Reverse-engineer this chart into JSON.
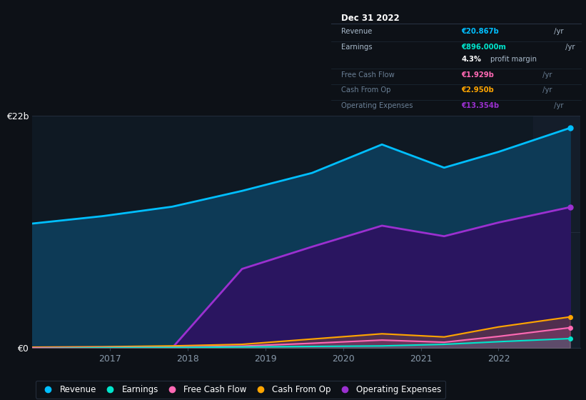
{
  "background_color": "#0d1117",
  "plot_bg_color": "#0f1923",
  "years": [
    2016.0,
    2016.9,
    2017.8,
    2018.7,
    2019.6,
    2020.5,
    2021.3,
    2022.0,
    2022.92
  ],
  "revenue": [
    11.8,
    12.5,
    13.4,
    14.9,
    16.6,
    19.3,
    17.1,
    18.6,
    20.867
  ],
  "earnings": [
    -0.05,
    0.02,
    0.05,
    0.1,
    0.15,
    0.2,
    0.35,
    0.6,
    0.896
  ],
  "free_cash_flow": [
    0.02,
    0.05,
    0.08,
    0.18,
    0.45,
    0.75,
    0.55,
    1.1,
    1.929
  ],
  "cash_from_op": [
    0.08,
    0.12,
    0.2,
    0.35,
    0.85,
    1.35,
    1.05,
    2.0,
    2.95
  ],
  "operating_expenses": [
    0,
    0,
    0,
    7.5,
    9.6,
    11.6,
    10.6,
    11.9,
    13.354
  ],
  "revenue_color": "#00bfff",
  "earnings_color": "#00e5cc",
  "free_cash_flow_color": "#ff69b4",
  "cash_from_op_color": "#ffa500",
  "operating_expenses_color": "#9b30d0",
  "revenue_fill": "#0d3a56",
  "operating_expenses_fill": "#2a1560",
  "ylim": [
    0,
    22
  ],
  "yticks": [
    0,
    11,
    22
  ],
  "ytick_labels": [
    "€0",
    "",
    "€22b"
  ],
  "xlabel_ticks": [
    2017,
    2018,
    2019,
    2020,
    2021,
    2022
  ],
  "info_box_title": "Dec 31 2022",
  "info_rows": [
    {
      "label": "Revenue",
      "value": "€20.867b",
      "unit": " /yr",
      "value_color": "#00bfff",
      "dim": false
    },
    {
      "label": "Earnings",
      "value": "€896.000m",
      "unit": " /yr",
      "value_color": "#00e5cc",
      "dim": false
    },
    {
      "label": "",
      "value": "4.3%",
      "unit": " profit margin",
      "value_color": "#ffffff",
      "dim": false,
      "suffix_dim": true
    },
    {
      "label": "Free Cash Flow",
      "value": "€1.929b",
      "unit": " /yr",
      "value_color": "#ff69b4",
      "dim": true
    },
    {
      "label": "Cash From Op",
      "value": "€2.950b",
      "unit": " /yr",
      "value_color": "#ffa500",
      "dim": true
    },
    {
      "label": "Operating Expenses",
      "value": "€13.354b",
      "unit": " /yr",
      "value_color": "#9b30d0",
      "dim": true
    }
  ],
  "legend_items": [
    {
      "label": "Revenue",
      "color": "#00bfff"
    },
    {
      "label": "Earnings",
      "color": "#00e5cc"
    },
    {
      "label": "Free Cash Flow",
      "color": "#ff69b4"
    },
    {
      "label": "Cash From Op",
      "color": "#ffa500"
    },
    {
      "label": "Operating Expenses",
      "color": "#9b30d0"
    }
  ]
}
